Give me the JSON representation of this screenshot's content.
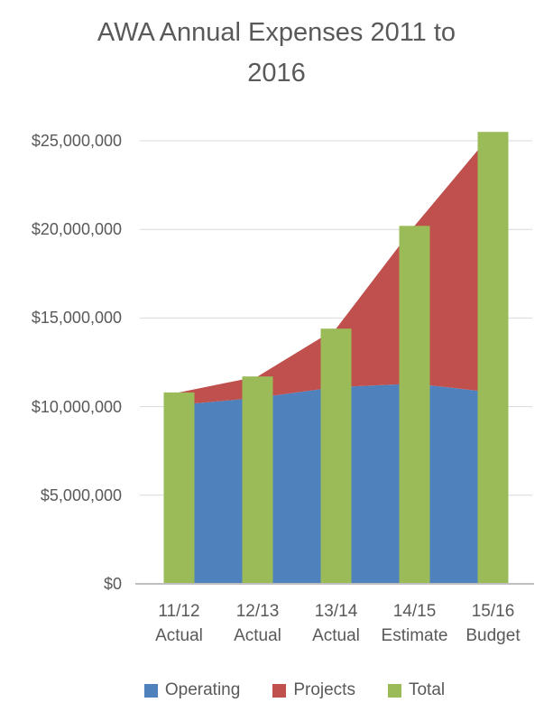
{
  "title": {
    "line1": "AWA Annual Expenses 2011 to",
    "line2": "2016"
  },
  "y_axis": {
    "ticks": [
      {
        "label": "$25,000,000",
        "value": 25000000
      },
      {
        "label": "$20,000,000",
        "value": 20000000
      },
      {
        "label": "$15,000,000",
        "value": 15000000
      },
      {
        "label": "$10,000,000",
        "value": 10000000
      },
      {
        "label": "$5,000,000",
        "value": 5000000
      },
      {
        "label": "$0",
        "value": 0
      }
    ]
  },
  "x_axis": {
    "labels": [
      {
        "line1": "11/12",
        "line2": "Actual"
      },
      {
        "line1": "12/13",
        "line2": "Actual"
      },
      {
        "line1": "13/14",
        "line2": "Actual"
      },
      {
        "line1": "14/15",
        "line2": "Estimate"
      },
      {
        "line1": "15/16",
        "line2": "Budget"
      }
    ]
  },
  "legend": {
    "items": [
      {
        "label": "Operating",
        "color": "#4F81BD"
      },
      {
        "label": "Projects",
        "color": "#C0504D"
      },
      {
        "label": "Total",
        "color": "#9BBB59"
      }
    ]
  },
  "colors": {
    "operating": "#4F81BD",
    "projects": "#C0504D",
    "total": "#9BBB59",
    "gridline": "#D9D9D9",
    "axis_line": "#BFBFBF",
    "text": "#595959"
  },
  "chart_data": {
    "type": "combo",
    "title": "AWA Annual Expenses 2011 to 2016",
    "categories": [
      "11/12 Actual",
      "12/13 Actual",
      "13/14 Actual",
      "14/15 Estimate",
      "15/16 Budget"
    ],
    "series": [
      {
        "name": "Operating",
        "type": "area",
        "stacked": true,
        "color": "#4F81BD",
        "values": [
          10100000,
          10500000,
          11100000,
          11300000,
          10800000
        ]
      },
      {
        "name": "Projects",
        "type": "area",
        "stacked": true,
        "color": "#C0504D",
        "values": [
          700000,
          1200000,
          3300000,
          8900000,
          14700000
        ]
      },
      {
        "name": "Total",
        "type": "bar",
        "color": "#9BBB59",
        "values": [
          10800000,
          11700000,
          14400000,
          20200000,
          25500000
        ]
      }
    ],
    "xlabel": "",
    "ylabel": "",
    "ylim": [
      0,
      25000000
    ],
    "y_tick_interval": 5000000,
    "y_tick_format": "$#,##0",
    "grid": true,
    "legend_position": "bottom"
  }
}
